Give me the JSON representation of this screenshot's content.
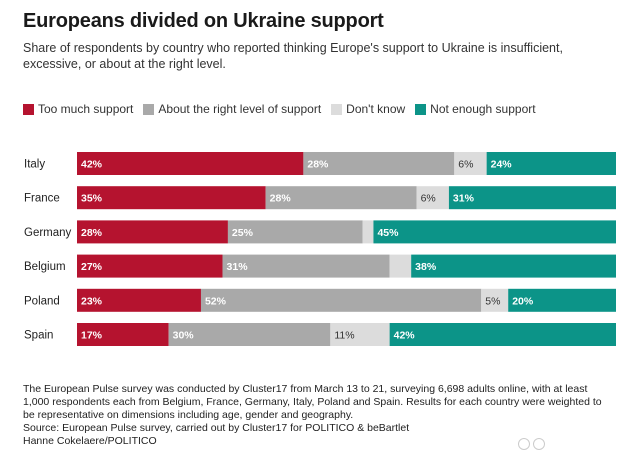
{
  "chart_data": {
    "type": "bar",
    "orientation": "horizontal",
    "stacked": true,
    "title": "Europeans divided on Ukraine support",
    "subtitle": "Share of respondents by country who reported thinking Europe's support to Ukraine is insufficient, excessive, or about at the right level.",
    "categories": [
      "Italy",
      "France",
      "Germany",
      "Belgium",
      "Poland",
      "Spain"
    ],
    "series": [
      {
        "name": "Too much support",
        "color": "#b5132f",
        "values": [
          42,
          35,
          28,
          27,
          23,
          17
        ],
        "labels": [
          "42%",
          "35%",
          "28%",
          "27%",
          "23%",
          "17%"
        ]
      },
      {
        "name": "About the right level of support",
        "color": "#a9a9a9",
        "values": [
          28,
          28,
          25,
          31,
          52,
          30
        ],
        "labels": [
          "28%",
          "28%",
          "25%",
          "31%",
          "52%",
          "30%"
        ]
      },
      {
        "name": "Don't know",
        "color": "#dcdcdc",
        "values": [
          6,
          6,
          2,
          4,
          5,
          11
        ],
        "labels": [
          "6%",
          "6%",
          "",
          "",
          "5%",
          "11%"
        ]
      },
      {
        "name": "Not enough support",
        "color": "#0c9488",
        "values": [
          24,
          31,
          45,
          38,
          20,
          42
        ],
        "labels": [
          "24%",
          "31%",
          "45%",
          "38%",
          "20%",
          "42%"
        ]
      }
    ],
    "xlim": [
      0,
      100
    ]
  },
  "footer": {
    "note": "The European Pulse survey was conducted by Cluster17 from March 13 to 21, surveying 6,698 adults online, with at least 1,000 respondents each from Belgium, France, Germany, Italy, Poland and Spain. Results for each country were weighted to be representative on dimensions including age, gender and geography.",
    "source": "Source: European Pulse survey, carried out by Cluster17 for POLITICO & beBartlet",
    "credit": "Hanne Cokelaere/POLITICO"
  }
}
